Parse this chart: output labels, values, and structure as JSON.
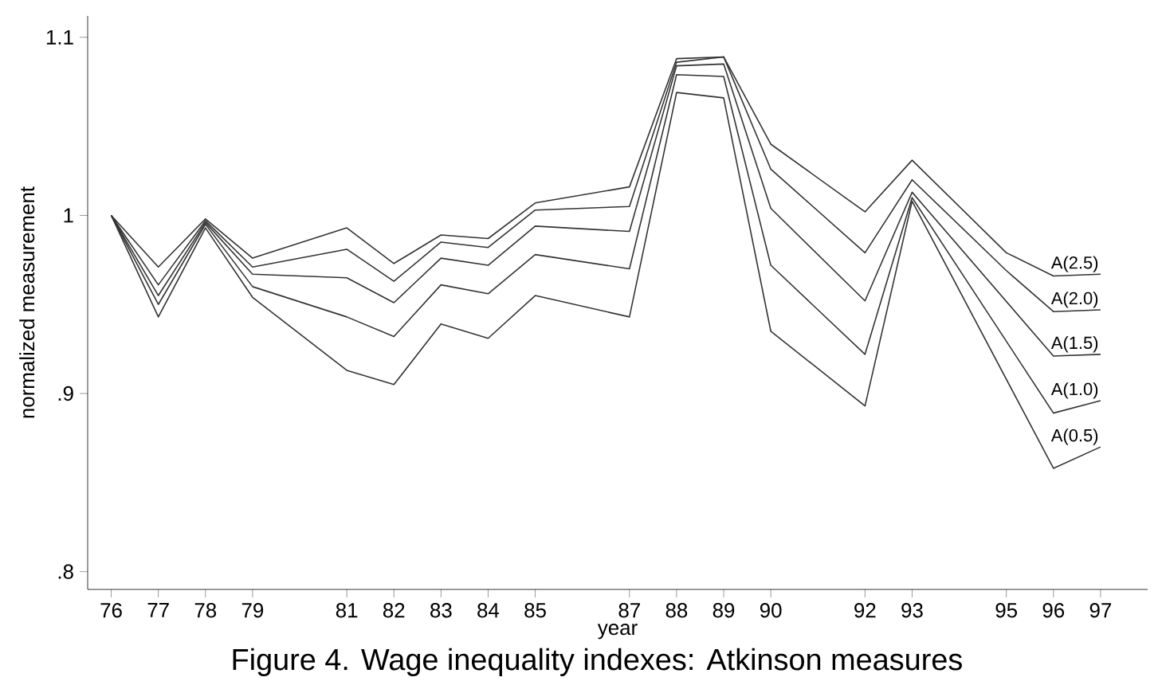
{
  "chart_data": {
    "type": "line",
    "xlabel": "year",
    "ylabel": "normalized measurement",
    "x": [
      76,
      77,
      78,
      79,
      81,
      82,
      83,
      84,
      85,
      87,
      88,
      89,
      90,
      92,
      93,
      96,
      97
    ],
    "series": [
      {
        "name": "A(2.5)",
        "color": "#333333",
        "x": [
          76,
          77,
          78,
          79,
          81,
          82,
          83,
          84,
          85,
          87,
          88,
          89,
          90,
          92,
          93,
          95,
          96,
          97
        ],
        "values": [
          1.0,
          0.971,
          0.998,
          0.976,
          0.993,
          0.973,
          0.989,
          0.987,
          1.007,
          1.016,
          1.088,
          1.089,
          1.04,
          1.002,
          1.031,
          0.979,
          0.966,
          0.967
        ]
      },
      {
        "name": "A(2.0)",
        "color": "#333333",
        "x": [
          76,
          77,
          78,
          79,
          81,
          82,
          83,
          84,
          85,
          87,
          88,
          89,
          90,
          92,
          93,
          95,
          96,
          97
        ],
        "values": [
          1.0,
          0.961,
          0.997,
          0.971,
          0.981,
          0.963,
          0.985,
          0.982,
          1.003,
          1.005,
          1.086,
          1.089,
          1.026,
          0.979,
          1.02,
          0.969,
          0.946,
          0.947
        ]
      },
      {
        "name": "A(1.5)",
        "color": "#333333",
        "values": [
          1.0,
          0.955,
          0.996,
          0.967,
          0.965,
          0.951,
          0.976,
          0.972,
          0.994,
          0.991,
          1.084,
          1.085,
          1.004,
          0.952,
          1.013,
          0.921,
          0.922
        ]
      },
      {
        "name": "A(1.0)",
        "color": "#333333",
        "values": [
          1.0,
          0.95,
          0.995,
          0.96,
          0.943,
          0.932,
          0.961,
          0.956,
          0.978,
          0.97,
          1.079,
          1.078,
          0.972,
          0.922,
          1.01,
          0.889,
          0.896
        ]
      },
      {
        "name": "A(0.5)",
        "color": "#333333",
        "values": [
          1.0,
          0.943,
          0.993,
          0.954,
          0.913,
          0.905,
          0.939,
          0.931,
          0.955,
          0.943,
          1.069,
          1.066,
          0.935,
          0.893,
          1.008,
          0.858,
          0.87
        ]
      }
    ],
    "xlim": [
      75.5,
      98
    ],
    "xticks": [
      76,
      77,
      78,
      79,
      81,
      82,
      83,
      84,
      85,
      87,
      88,
      89,
      90,
      92,
      93,
      95,
      96,
      97
    ],
    "ylim": [
      0.79,
      1.112
    ],
    "yticks": [
      {
        "value": 0.8,
        "label": ".8"
      },
      {
        "value": 0.9,
        "label": ".9"
      },
      1,
      1.1
    ],
    "annotations": [
      "Figure 4. Wage inequality indexes: Atkinson measures"
    ],
    "grid": false,
    "legend": false,
    "marker": "none",
    "line_style": "solid"
  }
}
